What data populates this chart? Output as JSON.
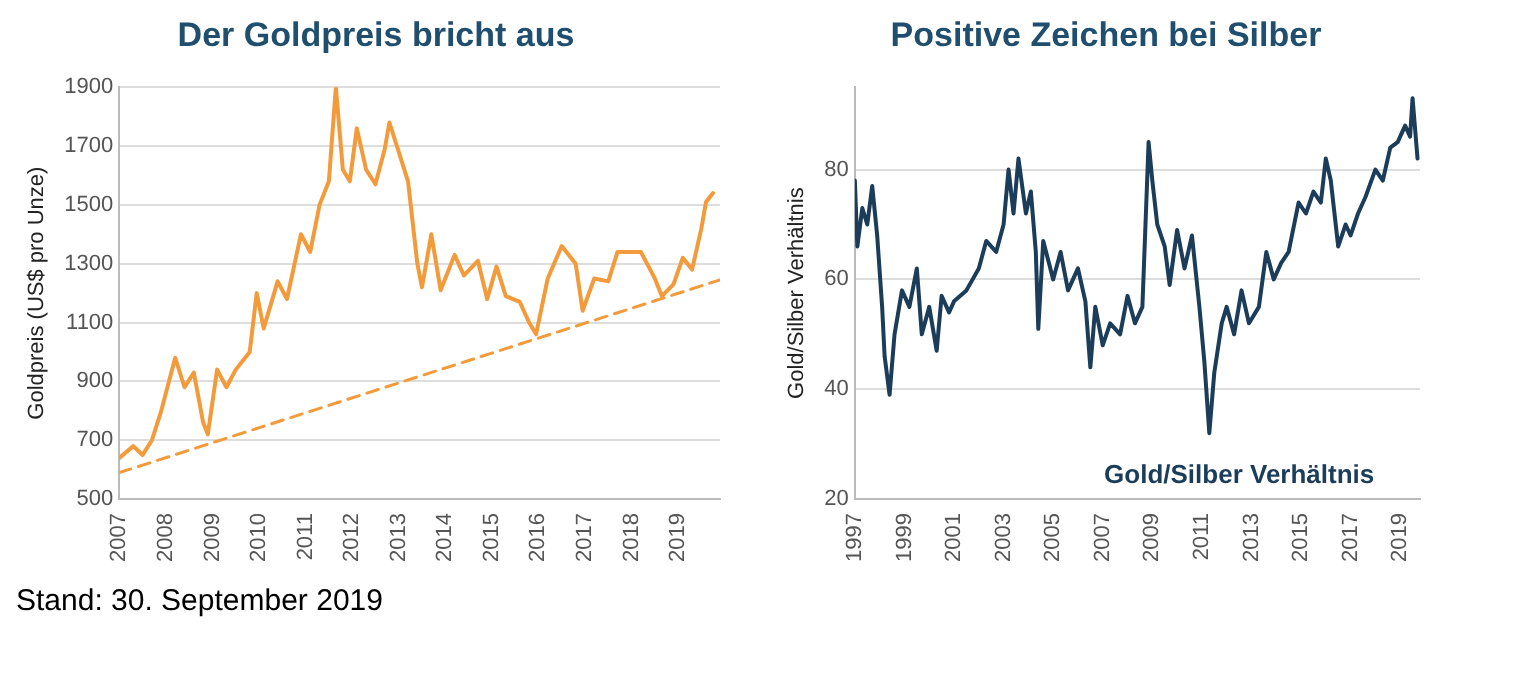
{
  "chart_data": [
    {
      "type": "line",
      "title": "Der Goldpreis bricht aus",
      "ylabel": "Goldpreis (US$ pro Unze)",
      "xlim": [
        2007,
        2019.9
      ],
      "xticks": [
        2007,
        2008,
        2009,
        2010,
        2011,
        2012,
        2013,
        2014,
        2015,
        2016,
        2017,
        2018,
        2019
      ],
      "ylim": [
        500,
        1900
      ],
      "yticks": [
        500,
        700,
        900,
        1100,
        1300,
        1500,
        1700,
        1900
      ],
      "grid": "y",
      "legend": false,
      "marker": "none",
      "annotations": [
        "Stand: 30. September 2019"
      ],
      "series": [
        {
          "color": "#f39a3b",
          "line_style": "solid",
          "x": [
            2007.0,
            2007.3,
            2007.5,
            2007.7,
            2007.9,
            2008.2,
            2008.4,
            2008.6,
            2008.8,
            2008.9,
            2009.1,
            2009.3,
            2009.5,
            2009.8,
            2009.95,
            2010.1,
            2010.4,
            2010.6,
            2010.9,
            2011.1,
            2011.3,
            2011.5,
            2011.65,
            2011.8,
            2011.95,
            2012.1,
            2012.3,
            2012.5,
            2012.7,
            2012.8,
            2013.0,
            2013.2,
            2013.4,
            2013.5,
            2013.7,
            2013.9,
            2014.2,
            2014.4,
            2014.7,
            2014.9,
            2015.1,
            2015.3,
            2015.6,
            2015.8,
            2015.95,
            2016.2,
            2016.5,
            2016.8,
            2016.95,
            2017.2,
            2017.5,
            2017.7,
            2018.0,
            2018.2,
            2018.5,
            2018.65,
            2018.9,
            2019.1,
            2019.3,
            2019.5,
            2019.6,
            2019.75
          ],
          "values": [
            640,
            680,
            650,
            700,
            800,
            980,
            880,
            930,
            760,
            720,
            940,
            880,
            940,
            1000,
            1200,
            1080,
            1240,
            1180,
            1400,
            1340,
            1500,
            1580,
            1900,
            1620,
            1580,
            1760,
            1620,
            1570,
            1690,
            1780,
            1680,
            1580,
            1300,
            1220,
            1400,
            1210,
            1330,
            1260,
            1310,
            1180,
            1290,
            1190,
            1170,
            1100,
            1060,
            1250,
            1360,
            1300,
            1140,
            1250,
            1240,
            1340,
            1340,
            1340,
            1250,
            1190,
            1230,
            1320,
            1280,
            1420,
            1510,
            1540
          ]
        },
        {
          "color": "#f39a3b",
          "line_style": "dashed",
          "x": [
            2007,
            2019.9
          ],
          "values": [
            590,
            1245
          ]
        }
      ]
    },
    {
      "type": "line",
      "title": "Positive Zeichen bei Silber",
      "ylabel": "Gold/Silber Verhältnis",
      "xlim": [
        1997,
        2019.8
      ],
      "xticks": [
        1997,
        1999,
        2001,
        2003,
        2005,
        2007,
        2009,
        2011,
        2013,
        2015,
        2017,
        2019
      ],
      "ylim": [
        20,
        95
      ],
      "yticks": [
        20,
        40,
        60,
        80
      ],
      "grid": "y",
      "legend": false,
      "marker": "none",
      "series": [
        {
          "name": "Gold/Silber Verhältnis",
          "color": "#1b3d5a",
          "line_style": "solid",
          "x": [
            1997.0,
            1997.1,
            1997.3,
            1997.5,
            1997.7,
            1997.9,
            1998.1,
            1998.2,
            1998.4,
            1998.6,
            1998.9,
            1999.2,
            1999.5,
            1999.7,
            2000.0,
            2000.3,
            2000.5,
            2000.8,
            2001.0,
            2001.5,
            2002.0,
            2002.3,
            2002.7,
            2003.0,
            2003.2,
            2003.4,
            2003.6,
            2003.9,
            2004.1,
            2004.3,
            2004.4,
            2004.6,
            2005.0,
            2005.3,
            2005.6,
            2006.0,
            2006.3,
            2006.5,
            2006.7,
            2007.0,
            2007.3,
            2007.7,
            2008.0,
            2008.3,
            2008.6,
            2008.85,
            2009.0,
            2009.2,
            2009.5,
            2009.7,
            2010.0,
            2010.3,
            2010.6,
            2010.9,
            2011.1,
            2011.3,
            2011.5,
            2011.8,
            2012.0,
            2012.3,
            2012.6,
            2012.9,
            2013.3,
            2013.6,
            2013.9,
            2014.2,
            2014.5,
            2014.9,
            2015.2,
            2015.5,
            2015.8,
            2016.0,
            2016.2,
            2016.5,
            2016.8,
            2017.0,
            2017.3,
            2017.6,
            2018.0,
            2018.3,
            2018.6,
            2018.9,
            2019.2,
            2019.4,
            2019.5,
            2019.7
          ],
          "values": [
            78,
            66,
            73,
            70,
            77,
            68,
            55,
            46,
            39,
            50,
            58,
            55,
            62,
            50,
            55,
            47,
            57,
            54,
            56,
            58,
            62,
            67,
            65,
            70,
            80,
            72,
            82,
            72,
            76,
            65,
            51,
            67,
            60,
            65,
            58,
            62,
            56,
            44,
            55,
            48,
            52,
            50,
            57,
            52,
            55,
            85,
            78,
            70,
            66,
            59,
            69,
            62,
            68,
            55,
            45,
            32,
            43,
            52,
            55,
            50,
            58,
            52,
            55,
            65,
            60,
            63,
            65,
            74,
            72,
            76,
            74,
            82,
            78,
            66,
            70,
            68,
            72,
            75,
            80,
            78,
            84,
            85,
            88,
            86,
            93,
            82
          ]
        }
      ]
    }
  ]
}
